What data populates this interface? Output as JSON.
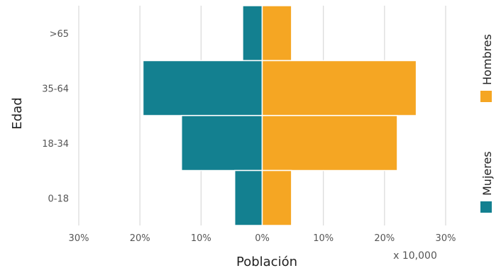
{
  "chart_data": {
    "type": "bar",
    "orientation": "horizontal",
    "layout": "population-pyramid",
    "categories": [
      ">65",
      "35-64",
      "18-34",
      "0-18"
    ],
    "series": [
      {
        "name": "Mujeres",
        "color": "#138090",
        "values": [
          3.2,
          19.5,
          13.2,
          4.5
        ]
      },
      {
        "name": "Hombres",
        "color": "#f5a623",
        "values": [
          4.8,
          25.2,
          22.1,
          4.8
        ]
      }
    ],
    "xlim": [
      -30,
      30
    ],
    "xticks": [
      "30%",
      "20%",
      "10%",
      "0%",
      "10%",
      "20%",
      "30%"
    ],
    "xlabel": "Población",
    "ylabel": "Edad",
    "x_multiplier": "x 10,000",
    "grid": "vertical",
    "legend_placement": "right"
  }
}
